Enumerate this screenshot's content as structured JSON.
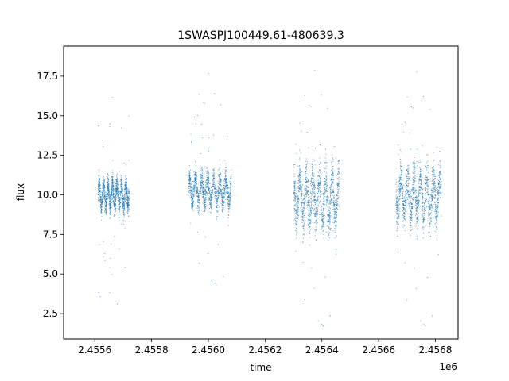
{
  "chart_data": {
    "type": "scatter",
    "title": "1SWASPJ100449.61-480639.3",
    "xlabel": "time",
    "ylabel": "flux",
    "x_offset_label": "1e6",
    "xlim": [
      2.45549,
      2.45688
    ],
    "ylim": [
      0.9,
      19.4
    ],
    "xticks": [
      2.4556,
      2.4558,
      2.456,
      2.4562,
      2.4564,
      2.4566,
      2.4568
    ],
    "xtick_labels": [
      "2.4556",
      "2.4558",
      "2.4560",
      "2.4562",
      "2.4564",
      "2.4566",
      "2.4568"
    ],
    "yticks": [
      2.5,
      5.0,
      7.5,
      10.0,
      12.5,
      15.0,
      17.5
    ],
    "ytick_labels": [
      "2.5",
      "5.0",
      "7.5",
      "10.0",
      "12.5",
      "15.0",
      "17.5"
    ],
    "grid": false,
    "legend": "none",
    "series": [
      {
        "color": "#1f77b4",
        "observing_segments": [
          {
            "x_start": 2.45561,
            "x_end": 2.45572,
            "y_center": 10.0,
            "y_spread": 1.2,
            "y_min": 3.0,
            "y_max": 16.7
          },
          {
            "x_start": 2.45593,
            "x_end": 2.45608,
            "y_center": 10.3,
            "y_spread": 1.3,
            "y_min": 4.3,
            "y_max": 18.2
          },
          {
            "x_start": 2.4563,
            "x_end": 2.45646,
            "y_center": 9.8,
            "y_spread": 2.3,
            "y_min": 1.7,
            "y_max": 18.5
          },
          {
            "x_start": 2.45666,
            "x_end": 2.45682,
            "y_center": 10.0,
            "y_spread": 2.1,
            "y_min": 1.7,
            "y_max": 18.4
          }
        ]
      }
    ]
  }
}
